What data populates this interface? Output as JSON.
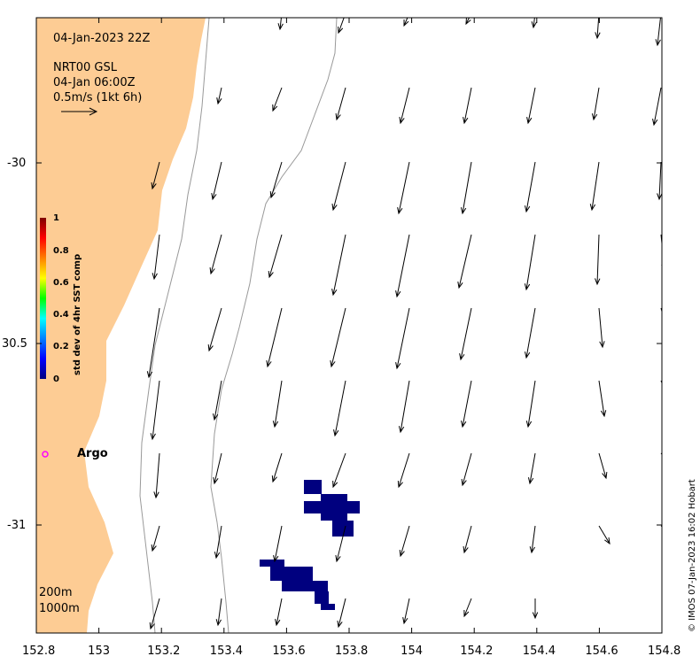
{
  "header": {
    "datetime": "04-Jan-2023 22Z",
    "product": "NRT00 GSL",
    "valid_time": "04-Jan 06:00Z",
    "scale_label": "0.5m/s (1kt 6h)"
  },
  "axes": {
    "x_ticks": [
      "152.8",
      "153",
      "153.2",
      "153.4",
      "153.6",
      "153.8",
      "154",
      "154.2",
      "154.4",
      "154.6",
      "154.8"
    ],
    "y_ticks": [
      "-30",
      "30.5",
      "-31"
    ]
  },
  "colorbar": {
    "title": "std dev of 4hr SST comp",
    "ticks": [
      "1",
      "0.8",
      "0.6",
      "0.4",
      "0.2",
      "0"
    ]
  },
  "markers": {
    "argo_label": "Argo",
    "argo_color": "#ff00ff"
  },
  "isobaths": [
    "200m",
    "1000m"
  ],
  "credit": "© IMOS 07-Jan-2023 16:02 Hobart",
  "colors": {
    "land": "#fdcc94",
    "sst_patch": "#00007f",
    "arrow": "#000000"
  }
}
